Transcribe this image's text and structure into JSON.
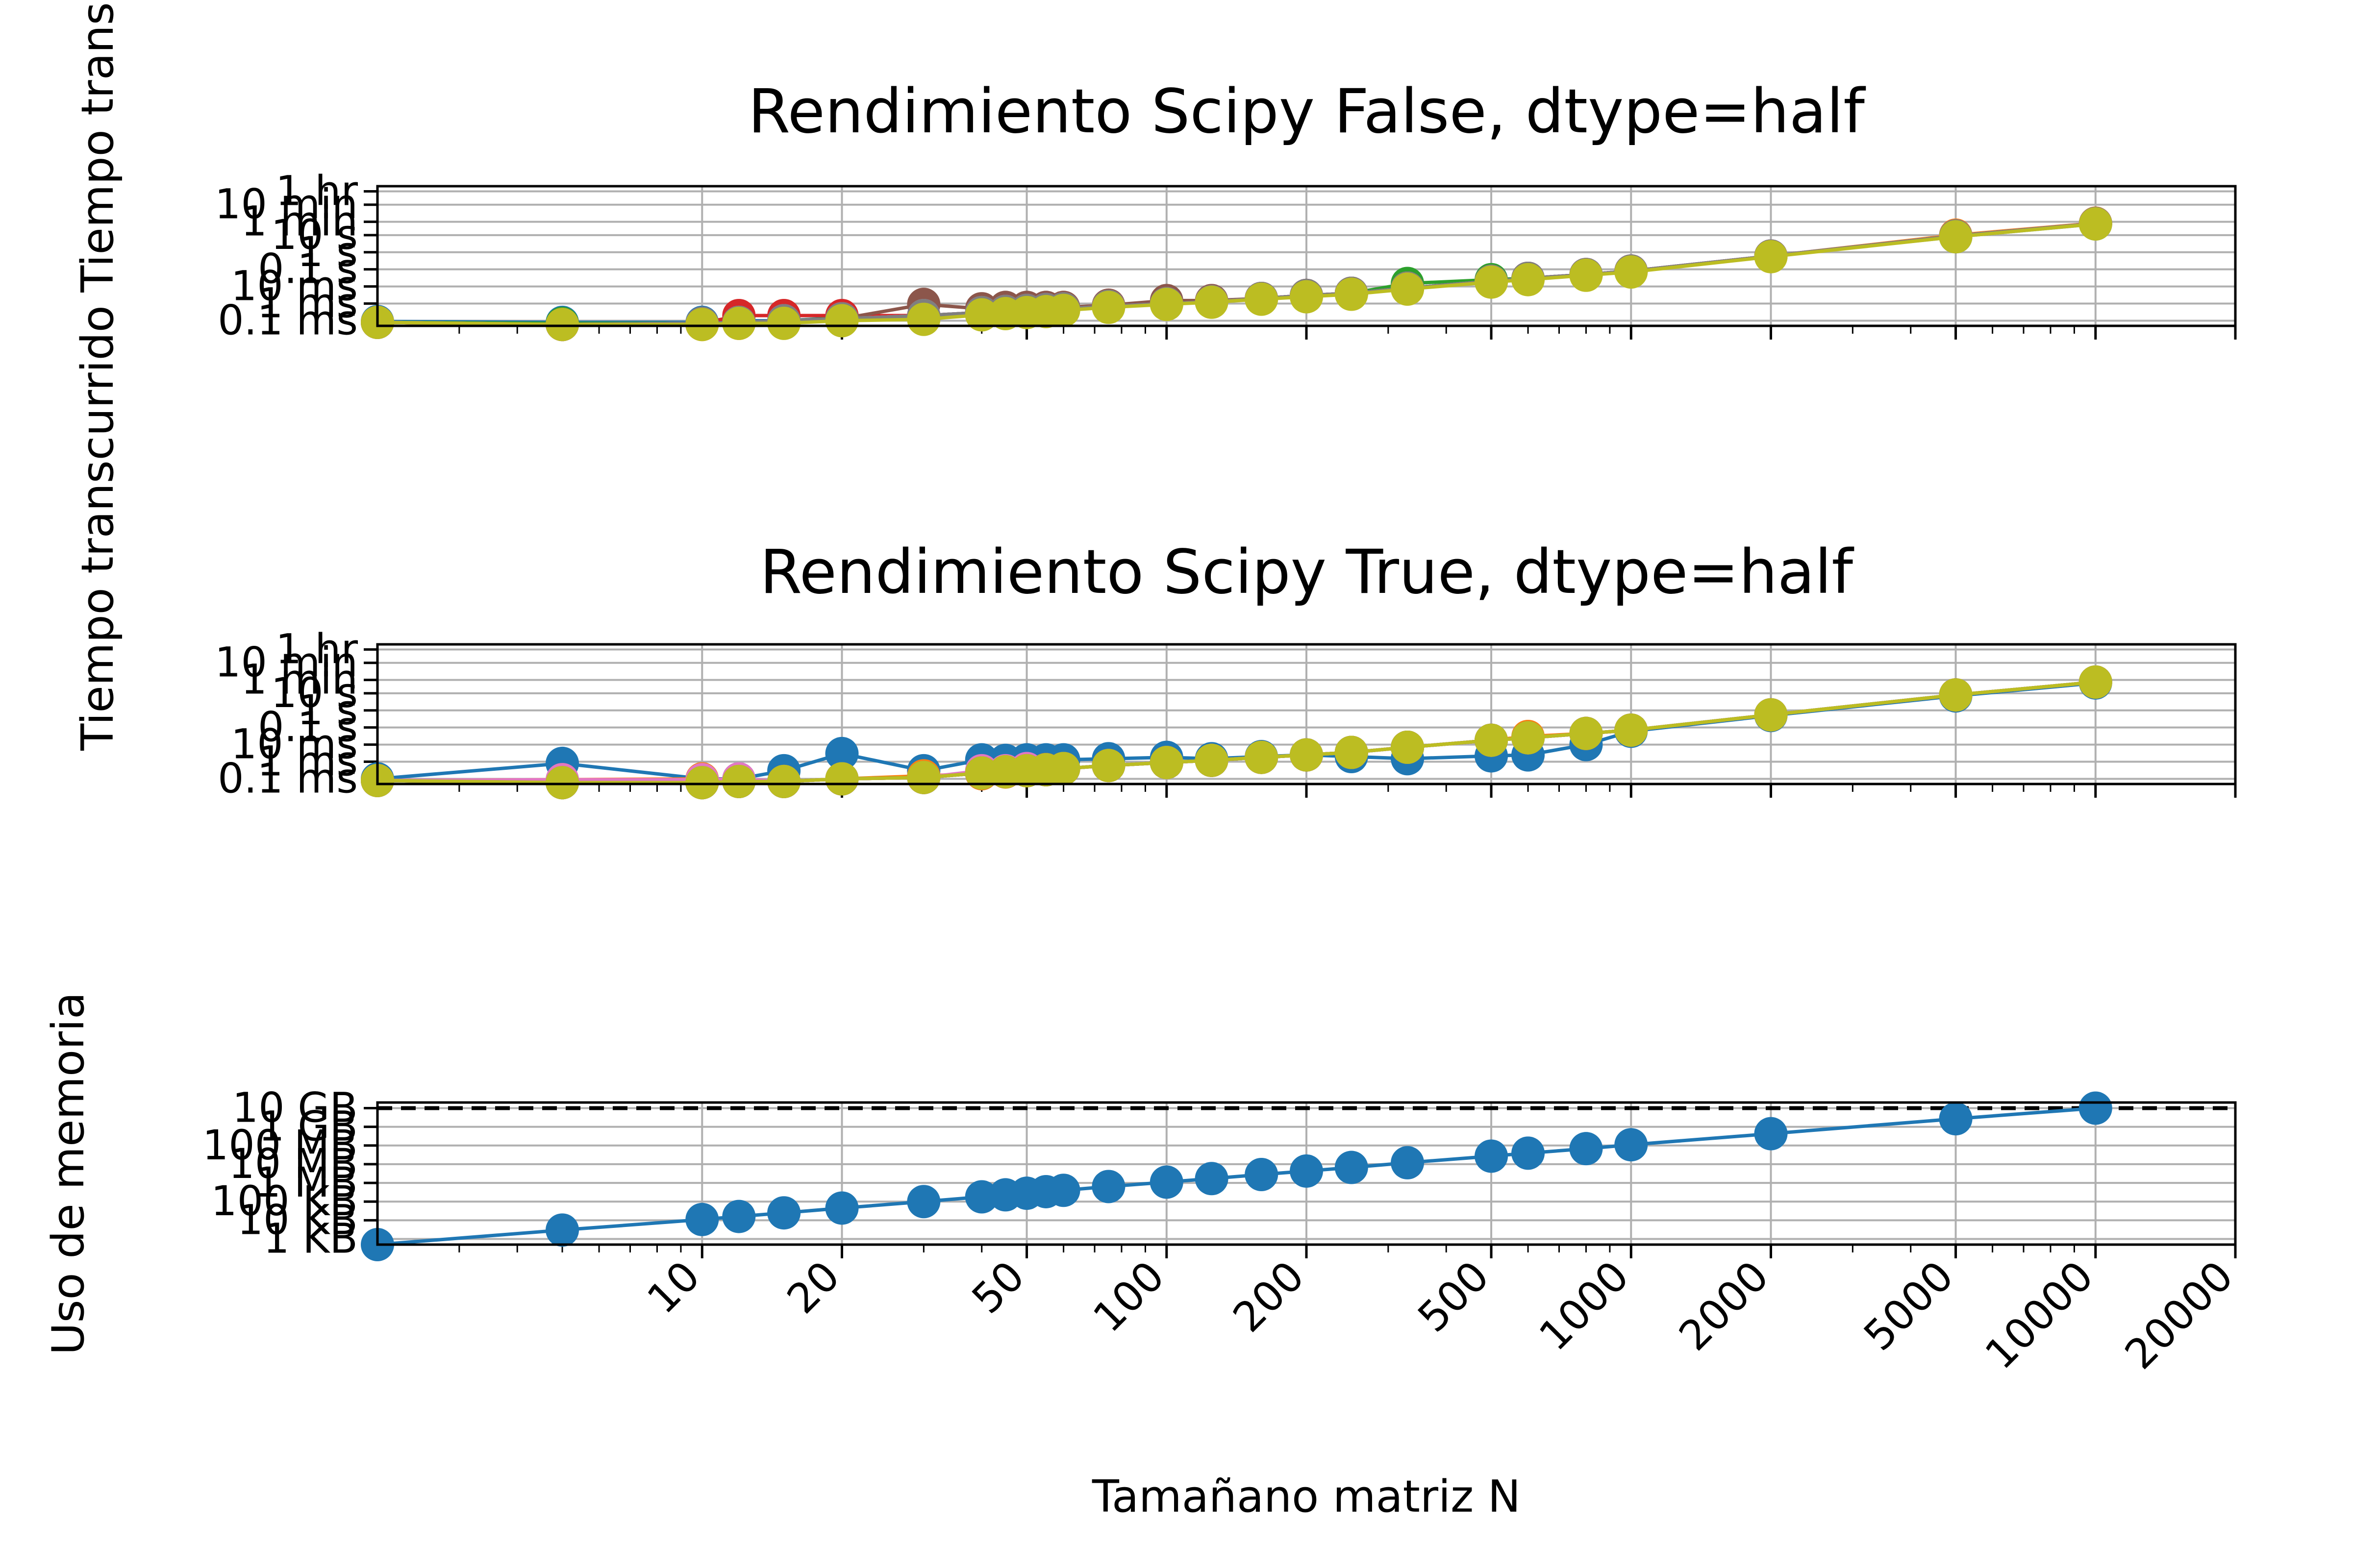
{
  "chart_data": [
    {
      "type": "line",
      "title": "Rendimiento Scipy False, dtype=half",
      "ylabel": "Tiempo transcurrido",
      "xlabel": "",
      "xscale": "log",
      "yscale": "log",
      "xlim": [
        2,
        20000
      ],
      "ylim": [
        5e-05,
        7200
      ],
      "grid": true,
      "y_ticks": [
        {
          "value": 0.0001,
          "label": "0.1 ms"
        },
        {
          "value": 0.001,
          "label": "1 ms"
        },
        {
          "value": 0.01,
          "label": "10 ms"
        },
        {
          "value": 0.1,
          "label": "0.1 s"
        },
        {
          "value": 1,
          "label": "1 s"
        },
        {
          "value": 10,
          "label": "10 s"
        },
        {
          "value": 60,
          "label": "1 min"
        },
        {
          "value": 600,
          "label": "10 min"
        },
        {
          "value": 3600,
          "label": "1 hr"
        }
      ],
      "x": [
        2,
        5,
        10,
        12,
        15,
        20,
        30,
        40,
        45,
        50,
        55,
        60,
        75,
        100,
        125,
        160,
        200,
        250,
        330,
        500,
        600,
        800,
        1000,
        2000,
        5000,
        10000
      ],
      "series": [
        {
          "color": "#1f77b4",
          "values": [
            9e-05,
            8e-05,
            8e-05,
            0.0001,
            0.0001,
            0.00015,
            0.0002,
            0.0003,
            0.00035,
            0.0004,
            0.00045,
            0.0005,
            0.0007,
            0.001,
            0.0014,
            0.002,
            0.003,
            0.004,
            0.008,
            0.02,
            0.03,
            0.05,
            0.08,
            0.6,
            8,
            45
          ]
        },
        {
          "color": "#ff7f0e",
          "values": [
            8e-05,
            6e-05,
            6e-05,
            7e-05,
            9e-05,
            0.00012,
            0.00018,
            0.0003,
            0.00035,
            0.0004,
            0.00045,
            0.0005,
            0.0007,
            0.001,
            0.0013,
            0.002,
            0.003,
            0.004,
            0.008,
            0.02,
            0.03,
            0.05,
            0.08,
            0.6,
            10,
            50
          ]
        },
        {
          "color": "#2ca02c",
          "values": [
            8e-05,
            7e-05,
            7e-05,
            8e-05,
            0.0001,
            0.00014,
            0.0002,
            0.0003,
            0.00035,
            0.0004,
            0.00045,
            0.0005,
            0.0007,
            0.001,
            0.0013,
            0.002,
            0.003,
            0.004,
            0.015,
            0.025,
            0.03,
            0.05,
            0.08,
            0.6,
            9,
            48
          ]
        },
        {
          "color": "#d62728",
          "values": [
            8e-05,
            6e-05,
            7e-05,
            0.0002,
            0.0002,
            0.0002,
            0.0002,
            0.0003,
            0.0004,
            0.0004,
            0.0005,
            0.0005,
            0.0008,
            0.0012,
            0.0014,
            0.002,
            0.003,
            0.004,
            0.008,
            0.02,
            0.03,
            0.05,
            0.08,
            0.6,
            9,
            48
          ]
        },
        {
          "color": "#9467bd",
          "values": [
            8e-05,
            6e-05,
            7e-05,
            8e-05,
            0.0001,
            0.00013,
            0.0002,
            0.0003,
            0.00035,
            0.0004,
            0.00045,
            0.0005,
            0.0007,
            0.001,
            0.0013,
            0.002,
            0.003,
            0.004,
            0.008,
            0.02,
            0.03,
            0.05,
            0.08,
            0.6,
            9,
            48
          ]
        },
        {
          "color": "#8c564b",
          "values": [
            8e-05,
            6e-05,
            7e-05,
            8e-05,
            0.0001,
            0.00013,
            0.0009,
            0.0005,
            0.0006,
            0.0006,
            0.0006,
            0.0006,
            0.0008,
            0.0015,
            0.0015,
            0.002,
            0.003,
            0.004,
            0.008,
            0.02,
            0.03,
            0.05,
            0.08,
            0.6,
            9,
            48
          ]
        },
        {
          "color": "#e377c2",
          "values": [
            8e-05,
            6e-05,
            7e-05,
            8e-05,
            0.0001,
            0.00013,
            0.0002,
            0.0003,
            0.00035,
            0.0004,
            0.00045,
            0.0005,
            0.0007,
            0.001,
            0.0013,
            0.002,
            0.003,
            0.004,
            0.008,
            0.02,
            0.03,
            0.05,
            0.08,
            0.6,
            9,
            48
          ]
        },
        {
          "color": "#7f7f7f",
          "values": [
            8e-05,
            6e-05,
            7e-05,
            8e-05,
            0.0001,
            0.00013,
            0.0002,
            0.0003,
            0.00035,
            0.0004,
            0.00045,
            0.0005,
            0.0007,
            0.001,
            0.0013,
            0.002,
            0.003,
            0.004,
            0.008,
            0.02,
            0.03,
            0.05,
            0.08,
            0.6,
            9,
            48
          ]
        },
        {
          "color": "#bcbd22",
          "values": [
            8e-05,
            6e-05,
            6e-05,
            7e-05,
            7e-05,
            0.0001,
            0.00012,
            0.00022,
            0.00026,
            0.0003,
            0.00034,
            0.0004,
            0.0006,
            0.0009,
            0.0012,
            0.0018,
            0.0025,
            0.0035,
            0.007,
            0.018,
            0.025,
            0.045,
            0.07,
            0.55,
            8,
            45
          ]
        }
      ]
    },
    {
      "type": "line",
      "title": "Rendimiento Scipy True, dtype=half",
      "ylabel": "Tiempo transcurrido",
      "xlabel": "",
      "xscale": "log",
      "yscale": "log",
      "xlim": [
        2,
        20000
      ],
      "ylim": [
        5e-05,
        7200
      ],
      "grid": true,
      "y_ticks": [
        {
          "value": 0.0001,
          "label": "0.1 ms"
        },
        {
          "value": 0.001,
          "label": "1 ms"
        },
        {
          "value": 0.01,
          "label": "10 ms"
        },
        {
          "value": 0.1,
          "label": "0.1 s"
        },
        {
          "value": 1,
          "label": "1 s"
        },
        {
          "value": 10,
          "label": "10 s"
        },
        {
          "value": 60,
          "label": "1 min"
        },
        {
          "value": 600,
          "label": "10 min"
        },
        {
          "value": 3600,
          "label": "1 hr"
        }
      ],
      "x": [
        2,
        5,
        10,
        12,
        15,
        20,
        30,
        40,
        45,
        50,
        55,
        60,
        75,
        100,
        125,
        160,
        200,
        250,
        330,
        500,
        600,
        800,
        1000,
        2000,
        5000,
        10000
      ],
      "series": [
        {
          "color": "#1f77b4",
          "values": [
            0.0001,
            0.0008,
            0.0001,
            0.0001,
            0.0003,
            0.003,
            0.0003,
            0.0013,
            0.0012,
            0.0013,
            0.0013,
            0.0013,
            0.0015,
            0.0018,
            0.0015,
            0.002,
            0.0025,
            0.002,
            0.0015,
            0.0022,
            0.0025,
            0.01,
            0.06,
            0.5,
            7,
            40
          ]
        },
        {
          "color": "#ff7f0e",
          "values": [
            8e-05,
            9e-05,
            0.0001,
            9e-05,
            7e-05,
            0.0001,
            0.00015,
            0.0002,
            0.00025,
            0.0003,
            0.00035,
            0.0004,
            0.0006,
            0.0009,
            0.0012,
            0.0018,
            0.0025,
            0.0035,
            0.007,
            0.018,
            0.03,
            0.045,
            0.07,
            0.55,
            8,
            45
          ]
        },
        {
          "color": "#2ca02c",
          "values": [
            8e-05,
            6e-05,
            6e-05,
            7e-05,
            7e-05,
            0.0001,
            0.00012,
            0.00022,
            0.00026,
            0.0003,
            0.00034,
            0.0004,
            0.0006,
            0.0009,
            0.0012,
            0.0018,
            0.0025,
            0.0035,
            0.007,
            0.018,
            0.025,
            0.045,
            0.07,
            0.55,
            8,
            45
          ]
        },
        {
          "color": "#d62728",
          "values": [
            8e-05,
            6e-05,
            6e-05,
            7e-05,
            7e-05,
            0.0001,
            0.00012,
            0.00022,
            0.00026,
            0.0003,
            0.00034,
            0.0004,
            0.0006,
            0.0009,
            0.0012,
            0.0018,
            0.0025,
            0.0035,
            0.007,
            0.018,
            0.025,
            0.045,
            0.07,
            0.55,
            8,
            45
          ]
        },
        {
          "color": "#9467bd",
          "values": [
            8e-05,
            6e-05,
            6e-05,
            7e-05,
            7e-05,
            0.0001,
            0.00012,
            0.00022,
            0.00026,
            0.0003,
            0.00034,
            0.0004,
            0.0006,
            0.0009,
            0.0012,
            0.0018,
            0.0025,
            0.0035,
            0.007,
            0.018,
            0.025,
            0.045,
            0.07,
            0.55,
            8,
            45
          ]
        },
        {
          "color": "#8c564b",
          "values": [
            8e-05,
            6e-05,
            6e-05,
            7e-05,
            7e-05,
            0.0001,
            0.00012,
            0.00022,
            0.00026,
            0.0003,
            0.00034,
            0.0004,
            0.0006,
            0.0009,
            0.0012,
            0.0018,
            0.0025,
            0.0035,
            0.007,
            0.018,
            0.025,
            0.045,
            0.07,
            0.55,
            8,
            45
          ]
        },
        {
          "color": "#e377c2",
          "values": [
            8e-05,
            9e-05,
            9e-05,
            0.0001,
            7e-05,
            0.0001,
            0.00012,
            0.0003,
            0.0003,
            0.0004,
            0.00034,
            0.0004,
            0.0006,
            0.0009,
            0.0012,
            0.0018,
            0.0025,
            0.0035,
            0.007,
            0.018,
            0.025,
            0.045,
            0.07,
            0.55,
            8,
            45
          ]
        },
        {
          "color": "#7f7f7f",
          "values": [
            8e-05,
            6e-05,
            6e-05,
            7e-05,
            7e-05,
            0.0001,
            0.00012,
            0.00022,
            0.00026,
            0.0003,
            0.00034,
            0.0004,
            0.0006,
            0.0009,
            0.0012,
            0.0018,
            0.0025,
            0.0035,
            0.007,
            0.018,
            0.025,
            0.045,
            0.07,
            0.55,
            8,
            45
          ]
        },
        {
          "color": "#bcbd22",
          "values": [
            8e-05,
            6e-05,
            6e-05,
            7e-05,
            7e-05,
            0.0001,
            0.00012,
            0.00022,
            0.00026,
            0.0003,
            0.00034,
            0.0004,
            0.0006,
            0.0009,
            0.0012,
            0.0018,
            0.0025,
            0.0035,
            0.007,
            0.018,
            0.025,
            0.045,
            0.07,
            0.55,
            8,
            45
          ]
        }
      ]
    },
    {
      "type": "line",
      "title": "",
      "ylabel": "Uso de memoria",
      "xlabel": "Tamañano matriz N",
      "xscale": "log",
      "yscale": "log",
      "xlim": [
        2,
        20000
      ],
      "ylim": [
        500,
        20000000000
      ],
      "grid": true,
      "y_ticks": [
        {
          "value": 1000,
          "label": "1 KB"
        },
        {
          "value": 10000,
          "label": "10 KB"
        },
        {
          "value": 100000,
          "label": "100 KB"
        },
        {
          "value": 1000000,
          "label": "1 MB"
        },
        {
          "value": 10000000,
          "label": "10 MB"
        },
        {
          "value": 100000000,
          "label": "100 MB"
        },
        {
          "value": 1000000000,
          "label": "1 GB"
        },
        {
          "value": 10000000000,
          "label": "10 GB"
        }
      ],
      "x_ticks": [
        {
          "value": 10,
          "label": "10"
        },
        {
          "value": 20,
          "label": "20"
        },
        {
          "value": 50,
          "label": "50"
        },
        {
          "value": 100,
          "label": "100"
        },
        {
          "value": 200,
          "label": "200"
        },
        {
          "value": 500,
          "label": "500"
        },
        {
          "value": 1000,
          "label": "1000"
        },
        {
          "value": 2000,
          "label": "2000"
        },
        {
          "value": 5000,
          "label": "5000"
        },
        {
          "value": 10000,
          "label": "10000"
        },
        {
          "value": 20000,
          "label": "20000"
        }
      ],
      "hline": {
        "value": 10000000000,
        "style": "dashed",
        "color": "#000000"
      },
      "x": [
        2,
        5,
        10,
        12,
        15,
        20,
        30,
        40,
        45,
        50,
        55,
        60,
        75,
        100,
        125,
        160,
        200,
        250,
        330,
        500,
        600,
        800,
        1000,
        2000,
        5000,
        10000
      ],
      "series": [
        {
          "color": "#1f77b4",
          "values": [
            500,
            3000,
            11000,
            16000,
            25000,
            45000,
            100000,
            180000,
            230000,
            280000,
            340000,
            400000,
            640000,
            1100000,
            1700000,
            2800000,
            4300000,
            6700000,
            12000000,
            27000000,
            39000000,
            68000000,
            110000000,
            430000000,
            2700000000,
            10000000000
          ]
        }
      ]
    }
  ]
}
